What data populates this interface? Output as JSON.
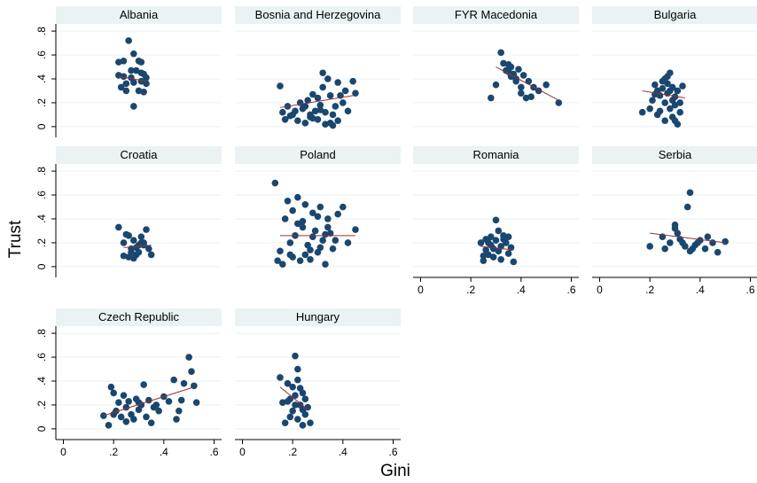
{
  "chart_data": {
    "type": "scatter",
    "y_label": "Trust",
    "x_label": "Gini",
    "marker_color": "#1a476f",
    "fit_color": "#90353b",
    "grid": true,
    "xlim": [
      -0.03,
      0.63
    ],
    "ylim": [
      -0.09,
      0.86
    ],
    "xticks": [
      0,
      {
        "value": 0.2,
        "label": ".2"
      },
      {
        "value": 0.4,
        "label": ".4"
      },
      {
        "value": 0.6,
        "label": ".6"
      }
    ],
    "yticks": [
      0,
      {
        "value": 0.2,
        "label": ".2"
      },
      {
        "value": 0.4,
        "label": ".4"
      },
      {
        "value": 0.6,
        "label": ".6"
      },
      {
        "value": 0.8,
        "label": ".8"
      }
    ],
    "panels": [
      {
        "title": "Albania",
        "x": [
          0.26,
          0.22,
          0.24,
          0.28,
          0.3,
          0.31,
          0.27,
          0.29,
          0.31,
          0.32,
          0.24,
          0.27,
          0.23,
          0.25,
          0.28,
          0.31,
          0.33,
          0.33,
          0.3,
          0.32,
          0.25,
          0.28,
          0.22
        ],
        "y": [
          0.72,
          0.54,
          0.55,
          0.61,
          0.55,
          0.54,
          0.47,
          0.47,
          0.45,
          0.44,
          0.42,
          0.41,
          0.33,
          0.36,
          0.37,
          0.38,
          0.36,
          0.41,
          0.3,
          0.29,
          0.3,
          0.17,
          0.43
        ],
        "fit_x": [
          0.22,
          0.33
        ],
        "fit_y": [
          0.42,
          0.38
        ]
      },
      {
        "title": "Bosnia and Herzegovina",
        "x": [
          0.15,
          0.17,
          0.16,
          0.18,
          0.2,
          0.21,
          0.22,
          0.24,
          0.25,
          0.26,
          0.27,
          0.28,
          0.29,
          0.3,
          0.31,
          0.32,
          0.32,
          0.33,
          0.34,
          0.35,
          0.36,
          0.37,
          0.38,
          0.39,
          0.4,
          0.41,
          0.42,
          0.44,
          0.45,
          0.19,
          0.23,
          0.27,
          0.3,
          0.33,
          0.35,
          0.38,
          0.28,
          0.25,
          0.31,
          0.36
        ],
        "y": [
          0.34,
          0.06,
          0.12,
          0.17,
          0.1,
          0.13,
          0.05,
          0.15,
          0.03,
          0.22,
          0.08,
          0.27,
          0.13,
          0.06,
          0.18,
          0.45,
          0.33,
          0.02,
          0.4,
          0.26,
          0.1,
          0.17,
          0.05,
          0.26,
          0.2,
          0.3,
          0.13,
          0.38,
          0.28,
          0.09,
          0.2,
          0.1,
          0.24,
          0.12,
          0.03,
          0.37,
          0.07,
          0.17,
          0.14,
          0.01
        ],
        "fit_x": [
          0.15,
          0.44
        ],
        "fit_y": [
          0.16,
          0.26
        ]
      },
      {
        "title": "FYR Macedonia",
        "x": [
          0.3,
          0.32,
          0.33,
          0.34,
          0.35,
          0.36,
          0.36,
          0.37,
          0.38,
          0.39,
          0.4,
          0.41,
          0.42,
          0.43,
          0.44,
          0.45,
          0.47,
          0.5,
          0.55,
          0.28,
          0.35,
          0.38,
          0.4
        ],
        "y": [
          0.35,
          0.62,
          0.53,
          0.47,
          0.52,
          0.5,
          0.42,
          0.44,
          0.38,
          0.48,
          0.33,
          0.43,
          0.24,
          0.38,
          0.25,
          0.33,
          0.3,
          0.35,
          0.2,
          0.24,
          0.46,
          0.4,
          0.28
        ],
        "fit_x": [
          0.3,
          0.55
        ],
        "fit_y": [
          0.5,
          0.22
        ]
      },
      {
        "title": "Bulgaria",
        "x": [
          0.17,
          0.2,
          0.21,
          0.22,
          0.23,
          0.24,
          0.24,
          0.25,
          0.26,
          0.26,
          0.27,
          0.27,
          0.28,
          0.28,
          0.29,
          0.29,
          0.3,
          0.3,
          0.31,
          0.31,
          0.32,
          0.33,
          0.25,
          0.23,
          0.27,
          0.29,
          0.22,
          0.3,
          0.26,
          0.28,
          0.32
        ],
        "y": [
          0.12,
          0.15,
          0.22,
          0.35,
          0.3,
          0.26,
          0.13,
          0.38,
          0.2,
          0.05,
          0.42,
          0.28,
          0.15,
          0.45,
          0.33,
          0.08,
          0.25,
          0.18,
          0.3,
          0.02,
          0.12,
          0.34,
          0.32,
          0.1,
          0.36,
          0.22,
          0.27,
          0.05,
          0.4,
          0.3,
          0.2
        ],
        "fit_x": [
          0.17,
          0.34
        ],
        "fit_y": [
          0.3,
          0.24
        ]
      },
      {
        "title": "Croatia",
        "x": [
          0.22,
          0.24,
          0.25,
          0.26,
          0.27,
          0.28,
          0.29,
          0.3,
          0.31,
          0.32,
          0.33,
          0.34,
          0.27,
          0.26,
          0.29,
          0.31,
          0.24,
          0.28,
          0.3,
          0.32,
          0.35
        ],
        "y": [
          0.33,
          0.2,
          0.27,
          0.08,
          0.15,
          0.22,
          0.1,
          0.18,
          0.25,
          0.2,
          0.31,
          0.15,
          0.12,
          0.26,
          0.16,
          0.2,
          0.09,
          0.07,
          0.12,
          0.18,
          0.1
        ],
        "fit_x": [
          0.24,
          0.35
        ],
        "fit_y": [
          0.16,
          0.18
        ]
      },
      {
        "title": "Poland",
        "x": [
          0.13,
          0.15,
          0.16,
          0.17,
          0.18,
          0.19,
          0.2,
          0.21,
          0.22,
          0.23,
          0.24,
          0.25,
          0.26,
          0.27,
          0.28,
          0.29,
          0.3,
          0.31,
          0.32,
          0.33,
          0.34,
          0.35,
          0.36,
          0.38,
          0.4,
          0.42,
          0.45,
          0.14,
          0.19,
          0.22,
          0.25,
          0.28,
          0.31,
          0.34,
          0.37,
          0.2,
          0.24,
          0.27,
          0.3,
          0.33
        ],
        "y": [
          0.7,
          0.13,
          0.02,
          0.4,
          0.55,
          0.1,
          0.47,
          0.26,
          0.58,
          0.05,
          0.33,
          0.52,
          0.18,
          0.06,
          0.45,
          0.3,
          0.12,
          0.5,
          0.22,
          0.02,
          0.4,
          0.28,
          0.15,
          0.44,
          0.5,
          0.2,
          0.31,
          0.05,
          0.2,
          0.36,
          0.1,
          0.25,
          0.16,
          0.33,
          0.22,
          0.08,
          0.38,
          0.14,
          0.42,
          0.27
        ],
        "fit_x": [
          0.15,
          0.45
        ],
        "fit_y": [
          0.26,
          0.26
        ]
      },
      {
        "title": "Romania",
        "x": [
          0.24,
          0.25,
          0.26,
          0.26,
          0.27,
          0.28,
          0.28,
          0.29,
          0.3,
          0.3,
          0.31,
          0.31,
          0.32,
          0.32,
          0.33,
          0.34,
          0.35,
          0.36,
          0.37,
          0.27,
          0.29,
          0.33,
          0.25,
          0.35
        ],
        "y": [
          0.2,
          0.05,
          0.23,
          0.14,
          0.1,
          0.25,
          0.18,
          0.08,
          0.39,
          0.22,
          0.3,
          0.13,
          0.17,
          0.06,
          0.26,
          0.2,
          0.11,
          0.16,
          0.04,
          0.2,
          0.15,
          0.23,
          0.09,
          0.25
        ],
        "fit_x": [
          0.24,
          0.37
        ],
        "fit_y": [
          0.17,
          0.14
        ]
      },
      {
        "title": "Serbia",
        "x": [
          0.2,
          0.25,
          0.26,
          0.28,
          0.3,
          0.31,
          0.32,
          0.33,
          0.35,
          0.36,
          0.37,
          0.38,
          0.4,
          0.42,
          0.43,
          0.45,
          0.47,
          0.5,
          0.3,
          0.34,
          0.36,
          0.39
        ],
        "y": [
          0.17,
          0.25,
          0.15,
          0.2,
          0.35,
          0.28,
          0.23,
          0.2,
          0.5,
          0.62,
          0.15,
          0.18,
          0.22,
          0.15,
          0.25,
          0.2,
          0.12,
          0.21,
          0.32,
          0.17,
          0.13,
          0.2
        ],
        "fit_x": [
          0.2,
          0.5
        ],
        "fit_y": [
          0.28,
          0.2
        ]
      },
      {
        "title": "Czech Republic",
        "x": [
          0.16,
          0.18,
          0.19,
          0.2,
          0.21,
          0.22,
          0.23,
          0.24,
          0.25,
          0.26,
          0.27,
          0.28,
          0.29,
          0.3,
          0.31,
          0.32,
          0.33,
          0.34,
          0.35,
          0.36,
          0.38,
          0.4,
          0.42,
          0.44,
          0.45,
          0.46,
          0.48,
          0.5,
          0.51,
          0.52,
          0.53,
          0.2,
          0.25,
          0.3,
          0.37,
          0.47
        ],
        "y": [
          0.11,
          0.03,
          0.35,
          0.12,
          0.15,
          0.22,
          0.1,
          0.28,
          0.18,
          0.23,
          0.12,
          0.08,
          0.25,
          0.16,
          0.2,
          0.37,
          0.1,
          0.24,
          0.05,
          0.18,
          0.15,
          0.27,
          0.23,
          0.41,
          0.08,
          0.15,
          0.38,
          0.6,
          0.48,
          0.36,
          0.22,
          0.3,
          0.06,
          0.22,
          0.2,
          0.24
        ],
        "fit_x": [
          0.16,
          0.52
        ],
        "fit_y": [
          0.11,
          0.35
        ]
      },
      {
        "title": "Hungary",
        "x": [
          0.15,
          0.16,
          0.17,
          0.18,
          0.19,
          0.2,
          0.21,
          0.21,
          0.22,
          0.22,
          0.23,
          0.23,
          0.24,
          0.24,
          0.25,
          0.25,
          0.26,
          0.27,
          0.18,
          0.2,
          0.22,
          0.24,
          0.19,
          0.21
        ],
        "y": [
          0.43,
          0.22,
          0.05,
          0.38,
          0.25,
          0.15,
          0.61,
          0.28,
          0.08,
          0.5,
          0.34,
          0.2,
          0.03,
          0.3,
          0.12,
          0.25,
          0.18,
          0.05,
          0.23,
          0.35,
          0.41,
          0.16,
          0.1,
          0.2
        ],
        "fit_x": [
          0.15,
          0.26
        ],
        "fit_y": [
          0.35,
          0.16
        ]
      }
    ]
  }
}
